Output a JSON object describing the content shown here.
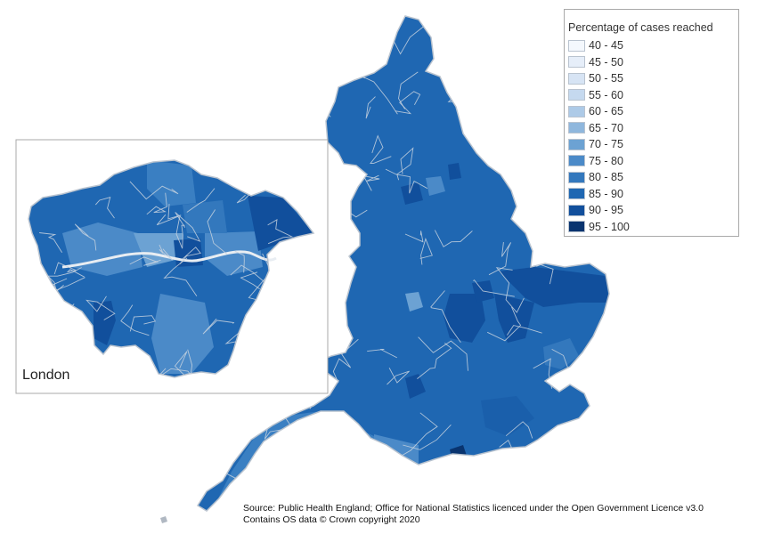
{
  "legend": {
    "title": "Percentage of cases reached",
    "items": [
      {
        "label": "40 - 45",
        "color": "#f4f8fd"
      },
      {
        "label": "45 - 50",
        "color": "#e6eef9"
      },
      {
        "label": "50 - 55",
        "color": "#d7e4f4"
      },
      {
        "label": "55 - 60",
        "color": "#c5d9ef"
      },
      {
        "label": "60 - 65",
        "color": "#adcae7"
      },
      {
        "label": "65 - 70",
        "color": "#8fb7dd"
      },
      {
        "label": "70 - 75",
        "color": "#6ca2d3"
      },
      {
        "label": "75 - 80",
        "color": "#4b8ac8"
      },
      {
        "label": "80 - 85",
        "color": "#3378bd"
      },
      {
        "label": "85 - 90",
        "color": "#1f67b2"
      },
      {
        "label": "90 - 95",
        "color": "#114f9c"
      },
      {
        "label": "95 - 100",
        "color": "#09346f"
      }
    ]
  },
  "inset": {
    "label": "London"
  },
  "source": {
    "line1": "Source: Public Health England; Office for National Statistics licenced under the Open Government Licence v3.0",
    "line2": "Contains OS data © Crown copyright 2020"
  },
  "colors": {
    "border": "#c9d3df",
    "river": "#e8edf2"
  }
}
